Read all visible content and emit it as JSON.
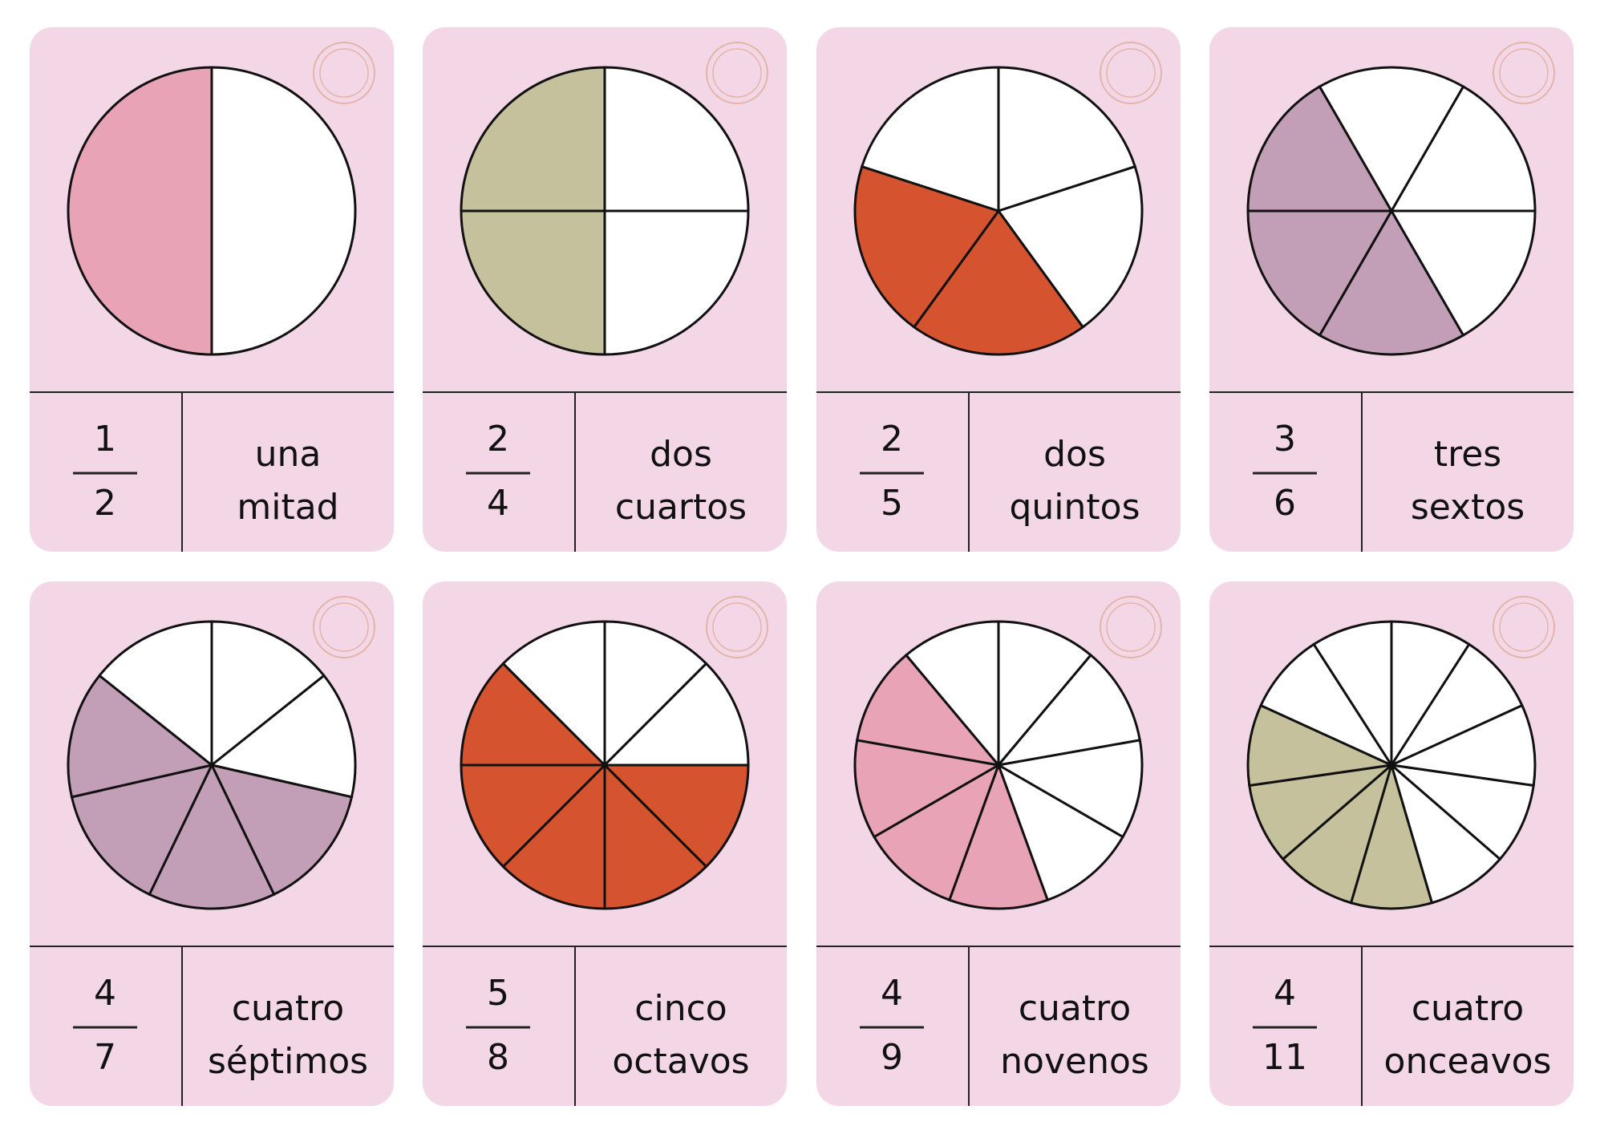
{
  "cards": [
    {
      "numerator": 1,
      "denominator": 2,
      "words": [
        "una",
        "mitad"
      ],
      "color": "#e8a3b6"
    },
    {
      "numerator": 2,
      "denominator": 4,
      "words": [
        "dos",
        "cuartos"
      ],
      "color": "#c4c19c"
    },
    {
      "numerator": 2,
      "denominator": 5,
      "words": [
        "dos",
        "quintos"
      ],
      "color": "#d5532f"
    },
    {
      "numerator": 3,
      "denominator": 6,
      "words": [
        "tres",
        "sextos"
      ],
      "color": "#c39fb7"
    },
    {
      "numerator": 4,
      "denominator": 7,
      "words": [
        "cuatro",
        "séptimos"
      ],
      "color": "#c39fb7"
    },
    {
      "numerator": 5,
      "denominator": 8,
      "words": [
        "cinco",
        "octavos"
      ],
      "color": "#d5532f"
    },
    {
      "numerator": 4,
      "denominator": 9,
      "words": [
        "cuatro",
        "novenos"
      ],
      "color": "#e8a3b6"
    },
    {
      "numerator": 4,
      "denominator": 11,
      "words": [
        "cuatro",
        "onceavos"
      ],
      "color": "#c4c19c"
    }
  ]
}
